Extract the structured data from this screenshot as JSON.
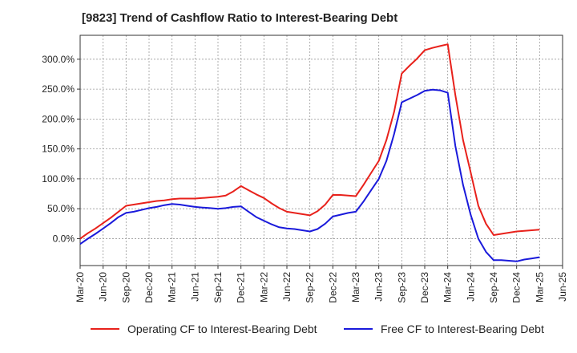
{
  "chart_data": {
    "type": "line",
    "title": "[9823]  Trend of Cashflow Ratio to Interest-Bearing Debt",
    "xlabel": "",
    "ylabel": "",
    "x_tick_labels": [
      "Mar-20",
      "Jun-20",
      "Sep-20",
      "Dec-20",
      "Mar-21",
      "Jun-21",
      "Sep-21",
      "Dec-21",
      "Mar-22",
      "Jun-22",
      "Sep-22",
      "Dec-22",
      "Mar-23",
      "Jun-23",
      "Sep-23",
      "Dec-23",
      "Mar-24",
      "Jun-24",
      "Sep-24",
      "Dec-24",
      "Mar-25",
      "Jun-25"
    ],
    "y_ticks": [
      0,
      50,
      100,
      150,
      200,
      250,
      300
    ],
    "y_tick_labels": [
      "0.0%",
      "50.0%",
      "100.0%",
      "150.0%",
      "200.0%",
      "250.0%",
      "300.0%"
    ],
    "ylim": [
      -45,
      340
    ],
    "grid": true,
    "legend_position": "bottom",
    "x": [
      "Mar-20",
      "Apr-20",
      "May-20",
      "Jun-20",
      "Jul-20",
      "Aug-20",
      "Sep-20",
      "Oct-20",
      "Nov-20",
      "Dec-20",
      "Jan-21",
      "Feb-21",
      "Mar-21",
      "Apr-21",
      "May-21",
      "Jun-21",
      "Jul-21",
      "Aug-21",
      "Sep-21",
      "Oct-21",
      "Nov-21",
      "Dec-21",
      "Jan-22",
      "Feb-22",
      "Mar-22",
      "Apr-22",
      "May-22",
      "Jun-22",
      "Jul-22",
      "Aug-22",
      "Sep-22",
      "Oct-22",
      "Nov-22",
      "Dec-22",
      "Jan-23",
      "Feb-23",
      "Mar-23",
      "Apr-23",
      "May-23",
      "Jun-23",
      "Jul-23",
      "Aug-23",
      "Sep-23",
      "Oct-23",
      "Nov-23",
      "Dec-23",
      "Jan-24",
      "Feb-24",
      "Mar-24",
      "Apr-24",
      "May-24",
      "Jun-24",
      "Jul-24",
      "Aug-24",
      "Sep-24",
      "Oct-24",
      "Nov-24",
      "Dec-24",
      "Jan-25",
      "Feb-25",
      "Mar-25"
    ],
    "series": [
      {
        "name": "Operating CF to Interest-Bearing Debt",
        "color": "#e8211b",
        "values": [
          0,
          9,
          17,
          26,
          35,
          45,
          55,
          57,
          59,
          61,
          63,
          64,
          66,
          67,
          67,
          67,
          68,
          69,
          70,
          72,
          79,
          88,
          81,
          74,
          68,
          59,
          51,
          45,
          43,
          41,
          39,
          46,
          57,
          73,
          73,
          72,
          71,
          90,
          110,
          130,
          165,
          212,
          276,
          289,
          301,
          315,
          319,
          322,
          325,
          240,
          165,
          111,
          55,
          25,
          6,
          8,
          10,
          12,
          13,
          14,
          15
        ]
      },
      {
        "name": "Free CF to Interest-Bearing Debt",
        "color": "#1a1adb",
        "values": [
          -9,
          0,
          8,
          17,
          26,
          36,
          43,
          45,
          48,
          51,
          53,
          56,
          58,
          57,
          55,
          53,
          52,
          51,
          50,
          51,
          53,
          54,
          45,
          36,
          30,
          24,
          19,
          17,
          16,
          14,
          12,
          16,
          25,
          37,
          40,
          43,
          45,
          62,
          81,
          100,
          130,
          175,
          228,
          234,
          240,
          247,
          249,
          248,
          244,
          155,
          90,
          40,
          0,
          -22,
          -36,
          -36,
          -37,
          -38,
          -35,
          -33,
          -31
        ]
      }
    ]
  }
}
